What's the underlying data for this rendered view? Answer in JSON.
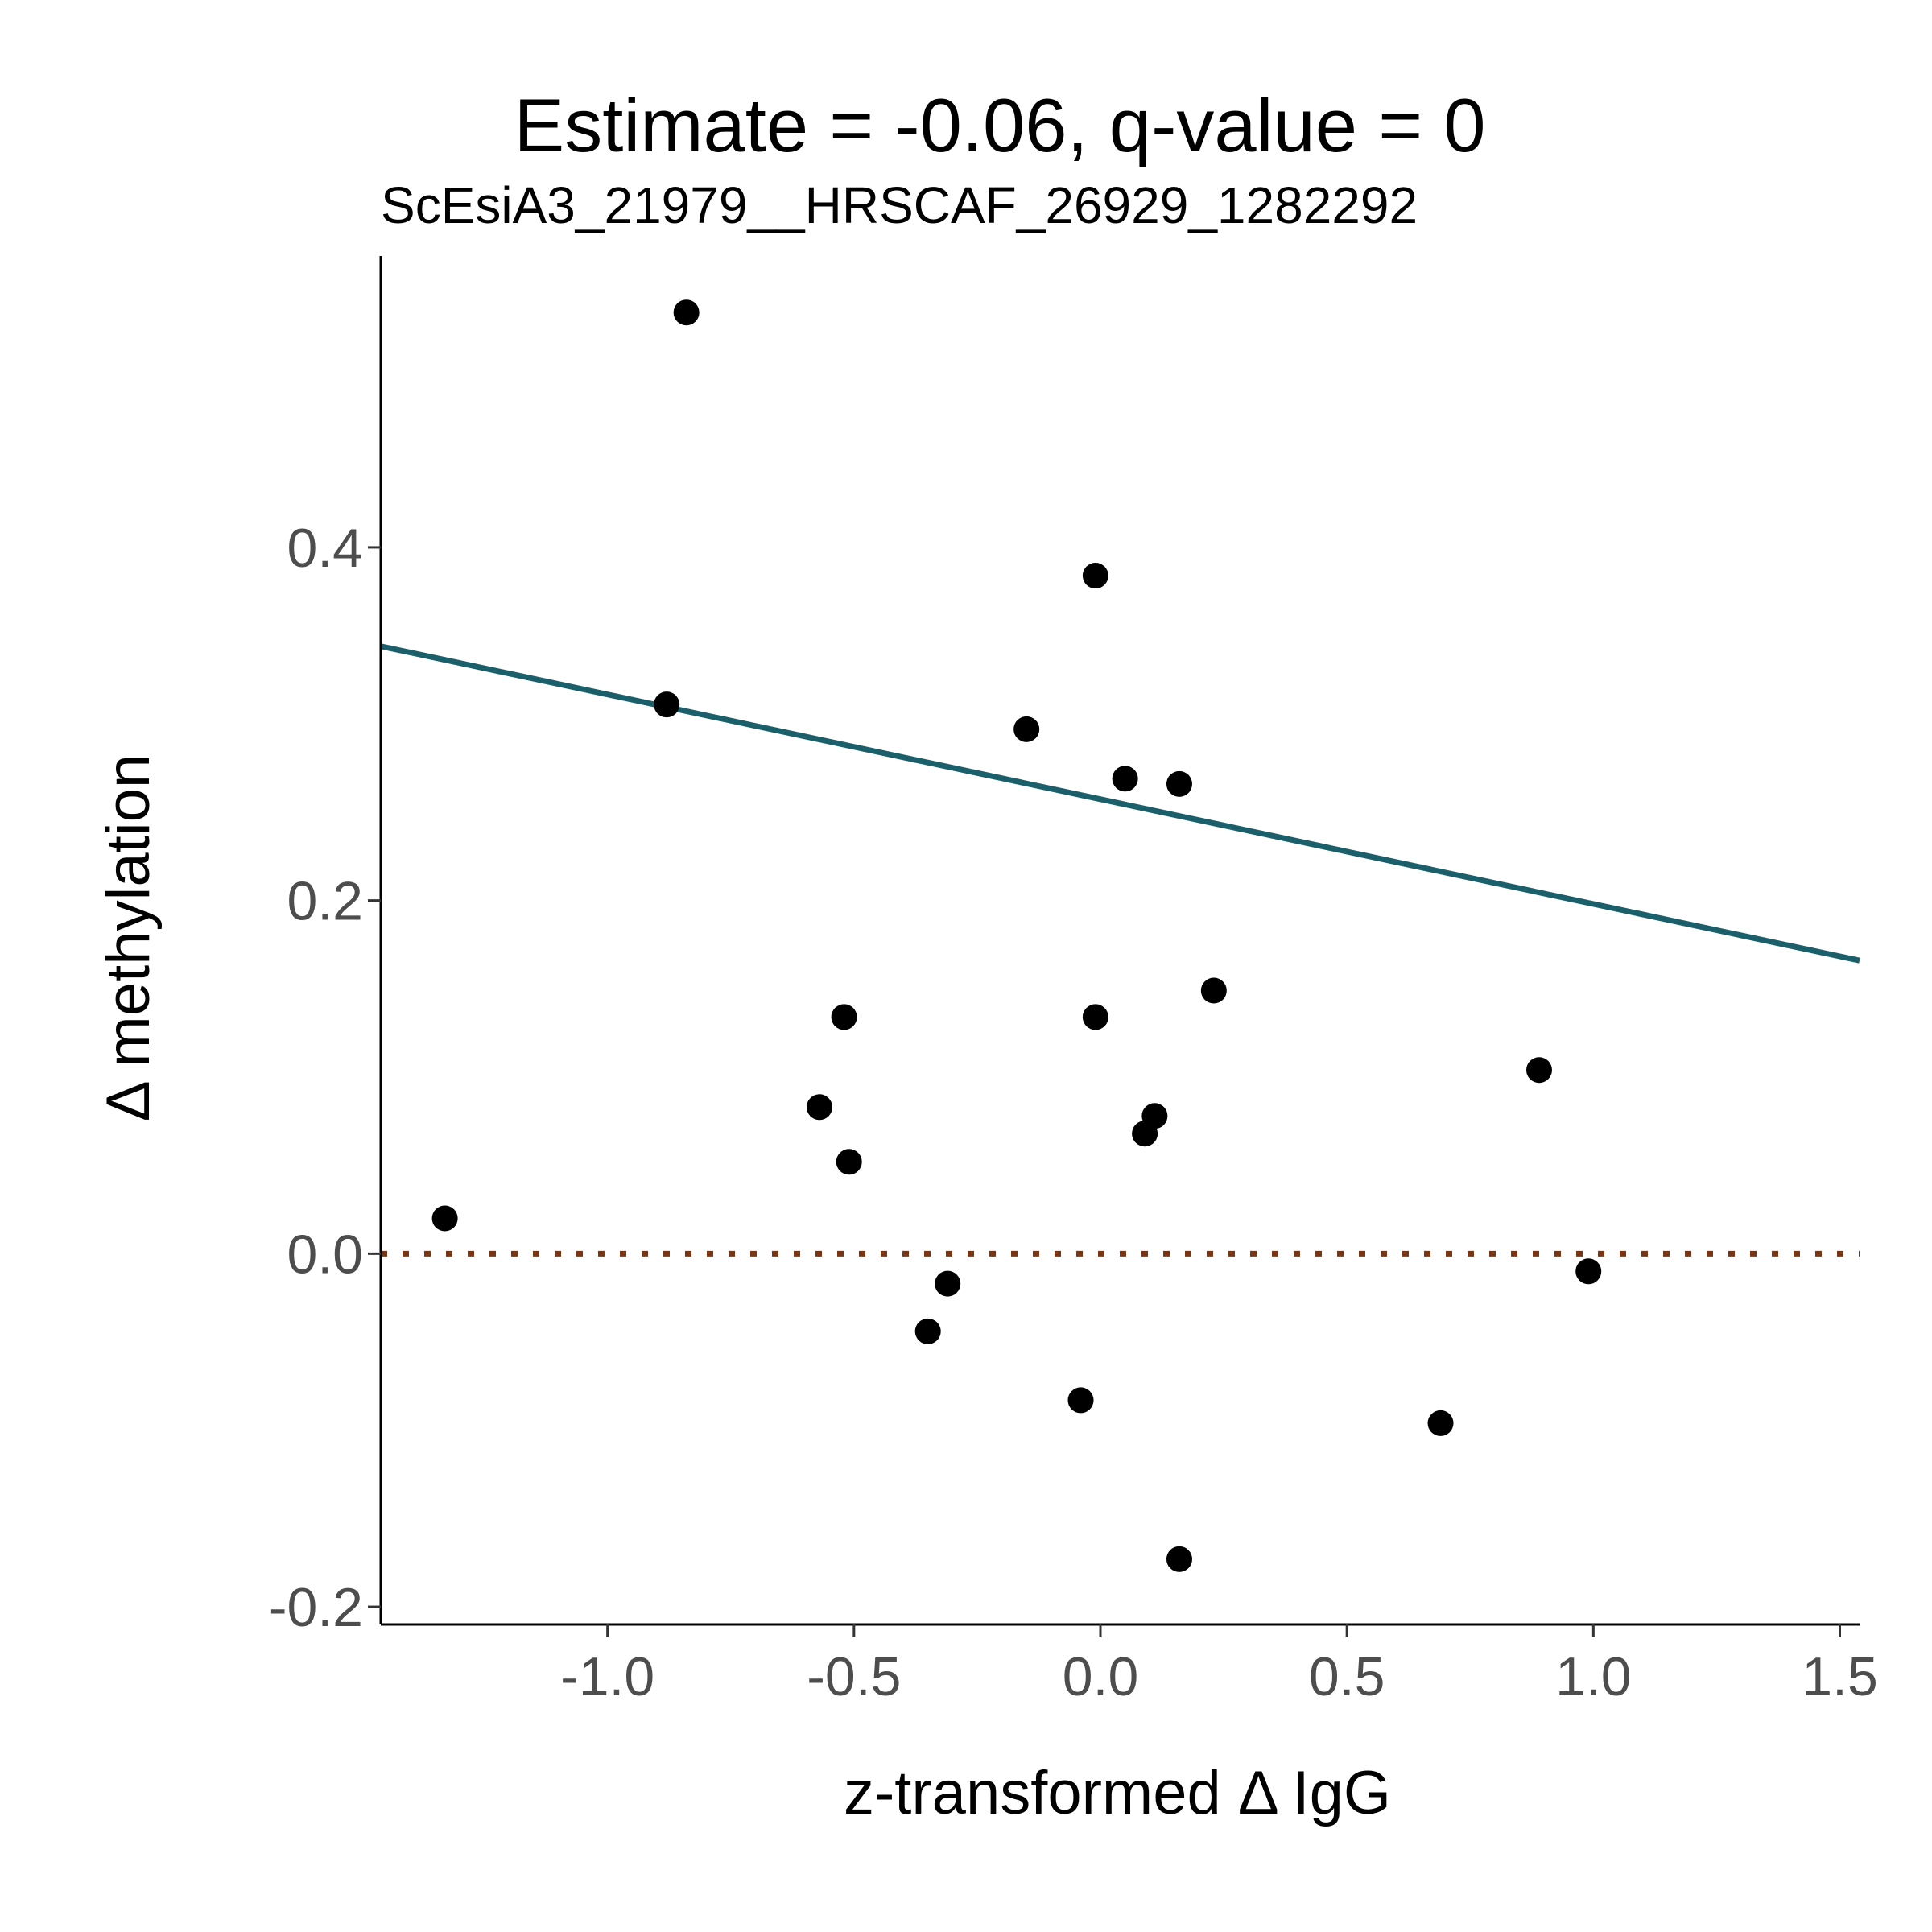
{
  "chart_data": {
    "type": "scatter",
    "title": "Estimate = -0.06, q-value = 0",
    "subtitle": "ScEsiA3_21979__HRSCAF_26929_1282292",
    "xlabel": "z-transformed Δ IgG",
    "ylabel": "Δ methylation",
    "xlim": [
      -1.46,
      1.54
    ],
    "ylim": [
      -0.21,
      0.565
    ],
    "x_ticks": [
      -1.0,
      -0.5,
      0.0,
      0.5,
      1.0,
      1.5
    ],
    "x_tick_labels": [
      "-1.0",
      "-0.5",
      "0.0",
      "0.5",
      "1.0",
      "1.5"
    ],
    "y_ticks": [
      -0.2,
      0.0,
      0.2,
      0.4
    ],
    "y_tick_labels": [
      "-0.2",
      "0.0",
      "0.2",
      "0.4"
    ],
    "grid": false,
    "points": [
      {
        "x": -1.33,
        "y": 0.02
      },
      {
        "x": -0.84,
        "y": 0.533
      },
      {
        "x": -0.88,
        "y": 0.311
      },
      {
        "x": -0.52,
        "y": 0.134
      },
      {
        "x": -0.57,
        "y": 0.083
      },
      {
        "x": -0.51,
        "y": 0.052
      },
      {
        "x": -0.31,
        "y": -0.017
      },
      {
        "x": -0.35,
        "y": -0.044
      },
      {
        "x": -0.15,
        "y": 0.297
      },
      {
        "x": -0.01,
        "y": 0.384
      },
      {
        "x": 0.05,
        "y": 0.269
      },
      {
        "x": 0.16,
        "y": 0.266
      },
      {
        "x": -0.01,
        "y": 0.134
      },
      {
        "x": 0.23,
        "y": 0.149
      },
      {
        "x": 0.11,
        "y": 0.078
      },
      {
        "x": 0.09,
        "y": 0.068
      },
      {
        "x": -0.04,
        "y": -0.083
      },
      {
        "x": 0.16,
        "y": -0.173
      },
      {
        "x": 0.69,
        "y": -0.096
      },
      {
        "x": 0.89,
        "y": 0.104
      },
      {
        "x": 0.99,
        "y": -0.01
      }
    ],
    "regression_line": {
      "x": [
        -1.46,
        1.54
      ],
      "y": [
        0.344,
        0.166
      ],
      "color": "#1b5f6b"
    },
    "reference_line": {
      "y": 0.0,
      "style": "dotted",
      "color": "#7a3514"
    },
    "point_color": "#000000"
  }
}
